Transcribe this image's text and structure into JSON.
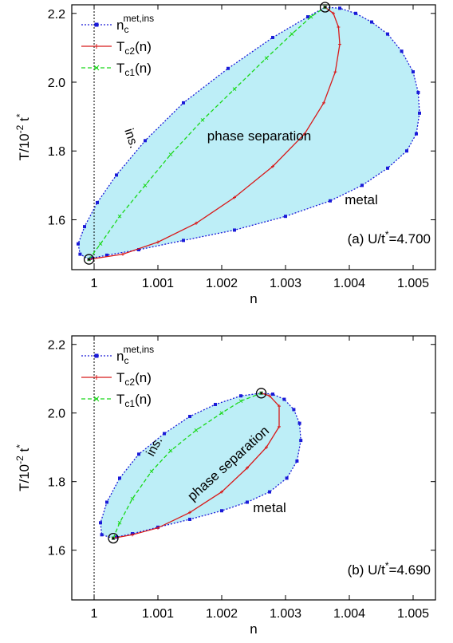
{
  "chart_data": [
    {
      "type": "line",
      "panel_label": "(a) U/t",
      "panel_label_sup": "*",
      "panel_label_value": "=4.700",
      "xlabel": "n",
      "ylabel_main": "T/10",
      "ylabel_exp": "-2",
      "ylabel_t": " t",
      "ylabel_t_sup": "*",
      "xlim": [
        0.99965,
        1.00535
      ],
      "ylim": [
        1.455,
        2.225
      ],
      "x_ticks": [
        1,
        1.001,
        1.002,
        1.003,
        1.004,
        1.005
      ],
      "x_tick_labels": [
        "1",
        "1.001",
        "1.002",
        "1.003",
        "1.004",
        "1.005"
      ],
      "y_ticks": [
        1.6,
        1.8,
        2.0,
        2.2
      ],
      "y_tick_labels": [
        "1.6",
        "1.8",
        "2.0",
        "2.2"
      ],
      "vline_x": 1.0,
      "legend": [
        {
          "key": "nc",
          "label": "n",
          "sub": "c",
          "sup": "met,ins",
          "color": "#1a1ad8",
          "style": "dotted-square"
        },
        {
          "key": "tc2",
          "label": "T",
          "sub": "c2",
          "suffix": "(n)",
          "color": "#d81a1a",
          "style": "solid-plus"
        },
        {
          "key": "tc1",
          "label": "T",
          "sub": "c1",
          "suffix": "(n)",
          "color": "#1ad81a",
          "style": "dashed-x"
        }
      ],
      "region_labels": {
        "insulator": "ins.",
        "coexistence": "phase separation",
        "metal": "metal"
      },
      "critical_points": [
        [
          0.99992,
          1.485
        ],
        [
          1.00362,
          2.218
        ]
      ],
      "series": [
        {
          "name": "n_c^met,ins",
          "x": [
            0.99992,
            0.99978,
            0.99975,
            0.99985,
            1.00005,
            1.00035,
            1.0008,
            1.0014,
            1.0021,
            1.0028,
            1.00335,
            1.00362,
            1.00385,
            1.0041,
            1.00435,
            1.0046,
            1.00482,
            1.005,
            1.00508,
            1.0051,
            1.00505,
            1.0049,
            1.0046,
            1.0042,
            1.0037,
            1.003,
            1.0022,
            1.0014,
            1.0007,
            1.0002,
            0.99995,
            0.99992
          ],
          "y": [
            1.485,
            1.5,
            1.53,
            1.58,
            1.65,
            1.73,
            1.83,
            1.94,
            2.04,
            2.13,
            2.19,
            2.218,
            2.215,
            2.2,
            2.175,
            2.14,
            2.09,
            2.03,
            1.97,
            1.91,
            1.85,
            1.8,
            1.75,
            1.7,
            1.655,
            1.61,
            1.57,
            1.54,
            1.513,
            1.497,
            1.488,
            1.485
          ]
        },
        {
          "name": "T_c2(n)",
          "x": [
            0.99992,
            1.00045,
            1.001,
            1.0016,
            1.0022,
            1.0028,
            1.0033,
            1.0036,
            1.00378,
            1.00385,
            1.00383,
            1.00375,
            1.00362
          ],
          "y": [
            1.485,
            1.5,
            1.535,
            1.59,
            1.665,
            1.755,
            1.85,
            1.94,
            2.03,
            2.11,
            2.16,
            2.2,
            2.218
          ]
        },
        {
          "name": "T_c1(n)",
          "x": [
            0.99992,
            1.0001,
            1.0004,
            1.0008,
            1.0012,
            1.0017,
            1.0022,
            1.0027,
            1.0031,
            1.0034,
            1.00362
          ],
          "y": [
            1.485,
            1.53,
            1.61,
            1.7,
            1.79,
            1.89,
            1.98,
            2.07,
            2.14,
            2.19,
            2.218
          ]
        }
      ]
    },
    {
      "type": "line",
      "panel_label": "(b) U/t",
      "panel_label_sup": "*",
      "panel_label_value": "=4.690",
      "xlabel": "n",
      "ylabel_main": "T/10",
      "ylabel_exp": "-2",
      "ylabel_t": " t",
      "ylabel_t_sup": "*",
      "xlim": [
        0.99965,
        1.00535
      ],
      "ylim": [
        1.455,
        2.225
      ],
      "x_ticks": [
        1,
        1.001,
        1.002,
        1.003,
        1.004,
        1.005
      ],
      "x_tick_labels": [
        "1",
        "1.001",
        "1.002",
        "1.003",
        "1.004",
        "1.005"
      ],
      "y_ticks": [
        1.6,
        1.8,
        2.0,
        2.2
      ],
      "y_tick_labels": [
        "1.6",
        "1.8",
        "2.0",
        "2.2"
      ],
      "vline_x": 1.0,
      "legend": [
        {
          "key": "nc",
          "label": "n",
          "sub": "c",
          "sup": "met,ins",
          "color": "#1a1ad8",
          "style": "dotted-square"
        },
        {
          "key": "tc2",
          "label": "T",
          "sub": "c2",
          "suffix": "(n)",
          "color": "#d81a1a",
          "style": "solid-plus"
        },
        {
          "key": "tc1",
          "label": "T",
          "sub": "c1",
          "suffix": "(n)",
          "color": "#1ad81a",
          "style": "dashed-x"
        }
      ],
      "region_labels": {
        "insulator": "ins.",
        "coexistence": "phase separation",
        "metal": "metal"
      },
      "critical_points": [
        [
          1.0003,
          1.635
        ],
        [
          1.00262,
          2.058
        ]
      ],
      "series": [
        {
          "name": "n_c^met,ins",
          "x": [
            1.0003,
            1.00012,
            1.0001,
            1.0002,
            1.0004,
            1.0007,
            1.0011,
            1.0015,
            1.0019,
            1.0023,
            1.00262,
            1.0028,
            1.00298,
            1.00313,
            1.00322,
            1.00324,
            1.00318,
            1.00302,
            1.00275,
            1.0024,
            1.002,
            1.0015,
            1.001,
            1.0006,
            1.00035,
            1.0003
          ],
          "y": [
            1.635,
            1.645,
            1.68,
            1.74,
            1.81,
            1.88,
            1.94,
            1.99,
            2.025,
            2.05,
            2.058,
            2.055,
            2.04,
            2.01,
            1.97,
            1.92,
            1.86,
            1.81,
            1.77,
            1.74,
            1.715,
            1.69,
            1.667,
            1.648,
            1.638,
            1.635
          ]
        },
        {
          "name": "T_c2(n)",
          "x": [
            1.0003,
            1.0006,
            1.001,
            1.0015,
            1.002,
            1.0024,
            1.0027,
            1.0029,
            1.0029,
            1.00275,
            1.00262
          ],
          "y": [
            1.635,
            1.645,
            1.665,
            1.71,
            1.77,
            1.84,
            1.9,
            1.96,
            2.02,
            2.05,
            2.058
          ]
        },
        {
          "name": "T_c1(n)",
          "x": [
            1.0003,
            1.0004,
            1.0006,
            1.0009,
            1.0012,
            1.0016,
            1.002,
            1.0023,
            1.00262
          ],
          "y": [
            1.635,
            1.68,
            1.75,
            1.83,
            1.89,
            1.95,
            2.0,
            2.035,
            2.058
          ]
        }
      ]
    }
  ]
}
